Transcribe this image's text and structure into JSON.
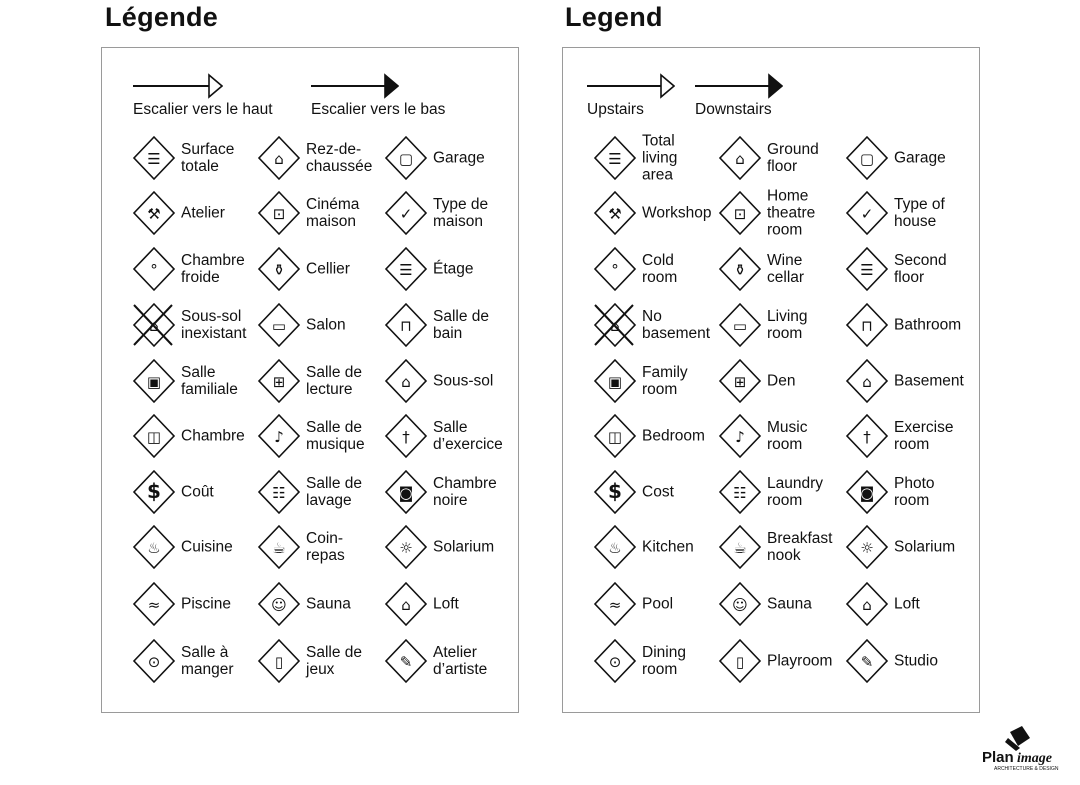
{
  "panels": [
    {
      "title": "Légende",
      "stairs_up": "Escalier vers le haut",
      "stairs_down": "Escalier vers le bas",
      "items": [
        {
          "label": "Surface\ntotale",
          "icon": "total-area-icon"
        },
        {
          "label": "Rez-de-\nchaussée",
          "icon": "ground-floor-icon"
        },
        {
          "label": "Garage",
          "icon": "garage-icon"
        },
        {
          "label": "Atelier",
          "icon": "workshop-icon"
        },
        {
          "label": "Cinéma\nmaison",
          "icon": "home-theatre-icon"
        },
        {
          "label": "Type de\nmaison",
          "icon": "house-type-icon"
        },
        {
          "label": "Chambre\nfroide",
          "icon": "cold-room-icon"
        },
        {
          "label": "Cellier",
          "icon": "wine-cellar-icon"
        },
        {
          "label": "Étage",
          "icon": "second-floor-icon"
        },
        {
          "label": "Sous-sol\ninexistant",
          "icon": "no-basement-icon"
        },
        {
          "label": "Salon",
          "icon": "living-room-icon"
        },
        {
          "label": "Salle de\nbain",
          "icon": "bathroom-icon"
        },
        {
          "label": "Salle\nfamiliale",
          "icon": "family-room-icon"
        },
        {
          "label": "Salle de\nlecture",
          "icon": "den-icon"
        },
        {
          "label": "Sous-sol",
          "icon": "basement-icon"
        },
        {
          "label": "Chambre",
          "icon": "bedroom-icon"
        },
        {
          "label": "Salle de\nmusique",
          "icon": "music-room-icon"
        },
        {
          "label": "Salle\nd’exercice",
          "icon": "exercise-room-icon"
        },
        {
          "label": "Coût",
          "icon": "cost-icon"
        },
        {
          "label": "Salle de\nlavage",
          "icon": "laundry-room-icon"
        },
        {
          "label": "Chambre\nnoire",
          "icon": "photo-room-icon"
        },
        {
          "label": "Cuisine",
          "icon": "kitchen-icon"
        },
        {
          "label": "Coin-\nrepas",
          "icon": "breakfast-nook-icon"
        },
        {
          "label": "Solarium",
          "icon": "solarium-icon"
        },
        {
          "label": "Piscine",
          "icon": "pool-icon"
        },
        {
          "label": "Sauna",
          "icon": "sauna-icon"
        },
        {
          "label": "Loft",
          "icon": "loft-icon"
        },
        {
          "label": "Salle à\nmanger",
          "icon": "dining-room-icon"
        },
        {
          "label": "Salle de\njeux",
          "icon": "playroom-icon"
        },
        {
          "label": "Atelier\nd’artiste",
          "icon": "studio-icon"
        }
      ]
    },
    {
      "title": "Legend",
      "stairs_up": "Upstairs",
      "stairs_down": "Downstairs",
      "items": [
        {
          "label": "Total\nliving\narea",
          "icon": "total-area-icon"
        },
        {
          "label": "Ground\nfloor",
          "icon": "ground-floor-icon"
        },
        {
          "label": "Garage",
          "icon": "garage-icon"
        },
        {
          "label": "Workshop",
          "icon": "workshop-icon"
        },
        {
          "label": "Home\ntheatre\nroom",
          "icon": "home-theatre-icon"
        },
        {
          "label": "Type of\nhouse",
          "icon": "house-type-icon"
        },
        {
          "label": "Cold\nroom",
          "icon": "cold-room-icon"
        },
        {
          "label": "Wine\ncellar",
          "icon": "wine-cellar-icon"
        },
        {
          "label": "Second\nfloor",
          "icon": "second-floor-icon"
        },
        {
          "label": "No\nbasement",
          "icon": "no-basement-icon"
        },
        {
          "label": "Living\nroom",
          "icon": "living-room-icon"
        },
        {
          "label": "Bathroom",
          "icon": "bathroom-icon"
        },
        {
          "label": "Family\nroom",
          "icon": "family-room-icon"
        },
        {
          "label": "Den",
          "icon": "den-icon"
        },
        {
          "label": "Basement",
          "icon": "basement-icon"
        },
        {
          "label": "Bedroom",
          "icon": "bedroom-icon"
        },
        {
          "label": "Music\nroom",
          "icon": "music-room-icon"
        },
        {
          "label": "Exercise\nroom",
          "icon": "exercise-room-icon"
        },
        {
          "label": "Cost",
          "icon": "cost-icon"
        },
        {
          "label": "Laundry\nroom",
          "icon": "laundry-room-icon"
        },
        {
          "label": "Photo\nroom",
          "icon": "photo-room-icon"
        },
        {
          "label": "Kitchen",
          "icon": "kitchen-icon"
        },
        {
          "label": "Breakfast\nnook",
          "icon": "breakfast-nook-icon"
        },
        {
          "label": "Solarium",
          "icon": "solarium-icon"
        },
        {
          "label": "Pool",
          "icon": "pool-icon"
        },
        {
          "label": "Sauna",
          "icon": "sauna-icon"
        },
        {
          "label": "Loft",
          "icon": "loft-icon"
        },
        {
          "label": "Dining\nroom",
          "icon": "dining-room-icon"
        },
        {
          "label": "Playroom",
          "icon": "playroom-icon"
        },
        {
          "label": "Studio",
          "icon": "studio-icon"
        }
      ]
    }
  ],
  "logo": {
    "text": "PlanImage",
    "subtitle": "ARCHITECTURE & DESIGN"
  }
}
